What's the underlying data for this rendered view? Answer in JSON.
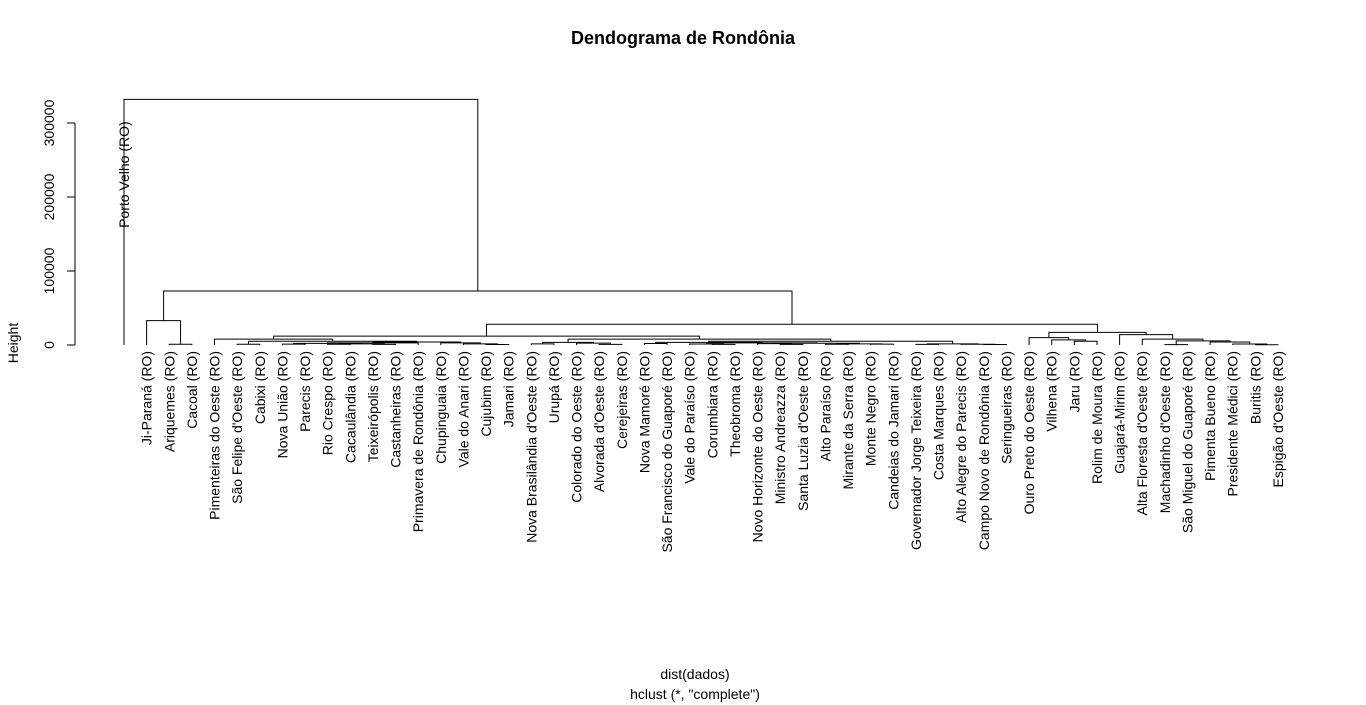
{
  "chart_data": {
    "type": "dendrogram",
    "title": "Dendograma de Rondônia",
    "xlabel": "dist(dados)",
    "subtitle": "hclust (*, \"complete\")",
    "ylabel": "Height",
    "ylim": [
      0,
      350000
    ],
    "yticks": [
      0,
      100000,
      200000,
      300000
    ],
    "linkage": "complete",
    "leaves": [
      "Porto Velho (RO)",
      "Ji-Paraná (RO)",
      "Ariquemes (RO)",
      "Cacoal (RO)",
      "Pimenteiras do Oeste (RO)",
      "São Felipe d'Oeste (RO)",
      "Cabixi (RO)",
      "Nova União (RO)",
      "Parecis (RO)",
      "Rio Crespo (RO)",
      "Cacaulândia (RO)",
      "Teixeirópolis (RO)",
      "Castanheiras (RO)",
      "Primavera de Rondônia (RO)",
      "Chupinguaia (RO)",
      "Vale do Anari (RO)",
      "Cujubim (RO)",
      "Jamari (RO)",
      "Nova Brasilândia d'Oeste (RO)",
      "Urupá (RO)",
      "Colorado do Oeste (RO)",
      "Alvorada d'Oeste (RO)",
      "Cerejeiras (RO)",
      "Nova Mamoré (RO)",
      "São Francisco do Guaporé (RO)",
      "Vale do Paraíso (RO)",
      "Corumbiara (RO)",
      "Theobroma (RO)",
      "Novo Horizonte do Oeste (RO)",
      "Ministro Andreazza (RO)",
      "Santa Luzia d'Oeste (RO)",
      "Alto Paraíso (RO)",
      "Mirante da Serra (RO)",
      "Monte Negro (RO)",
      "Candeias do Jamari (RO)",
      "Governador Jorge Teixeira (RO)",
      "Costa Marques (RO)",
      "Alto Alegre do Parecis (RO)",
      "Campo Novo de Rondônia (RO)",
      "Seringueiras (RO)",
      "Ouro Preto do Oeste (RO)",
      "Vilhena (RO)",
      "Jaru (RO)",
      "Rolim de Moura (RO)",
      "Guajará-Mirim (RO)",
      "Alta Floresta d'Oeste (RO)",
      "Machadinho d'Oeste (RO)",
      "São Miguel do Guaporé (RO)",
      "Pimenta Bueno (RO)",
      "Presidente Médici (RO)",
      "Buritis (RO)",
      "Espigão d'Oeste (RO)"
    ],
    "merges": [
      {
        "a": "L2",
        "b": "L3",
        "height": 1000
      },
      {
        "a": "L1",
        "b": "M1",
        "height": 33000
      },
      {
        "a": "L17",
        "b": "L16",
        "height": 600
      },
      {
        "a": "L15",
        "b": "M3",
        "height": 1500
      },
      {
        "a": "L14",
        "b": "M4",
        "height": 2800
      },
      {
        "a": "L12",
        "b": "L11",
        "height": 800
      },
      {
        "a": "L10",
        "b": "L9",
        "height": 1000
      },
      {
        "a": "M7",
        "b": "M6",
        "height": 1500
      },
      {
        "a": "L8",
        "b": "L7",
        "height": 1200
      },
      {
        "a": "M9",
        "b": "M8",
        "height": 2200
      },
      {
        "a": "L13",
        "b": "M10",
        "height": 2900
      },
      {
        "a": "M5",
        "b": "M11",
        "height": 4100
      },
      {
        "a": "L6",
        "b": "L5",
        "height": 1000
      },
      {
        "a": "M13",
        "b": "M12",
        "height": 5000
      },
      {
        "a": "L4",
        "b": "M14",
        "height": 8000
      },
      {
        "a": "L22",
        "b": "L21",
        "height": 800
      },
      {
        "a": "L20",
        "b": "M16",
        "height": 2500
      },
      {
        "a": "L19",
        "b": "L18",
        "height": 1600
      },
      {
        "a": "M18",
        "b": "M17",
        "height": 3600
      },
      {
        "a": "L23",
        "b": "L24",
        "height": 2000
      },
      {
        "a": "L34",
        "b": "L33",
        "height": 1200
      },
      {
        "a": "L32",
        "b": "L31",
        "height": 1000
      },
      {
        "a": "M21",
        "b": "M22",
        "height": 1500
      },
      {
        "a": "L29",
        "b": "L30",
        "height": 800
      },
      {
        "a": "L28",
        "b": "M24",
        "height": 1800
      },
      {
        "a": "M25",
        "b": "M23",
        "height": 2300
      },
      {
        "a": "L27",
        "b": "L26",
        "height": 800
      },
      {
        "a": "M27",
        "b": "L25",
        "height": 1400
      },
      {
        "a": "M28",
        "b": "M26",
        "height": 2800
      },
      {
        "a": "M20",
        "b": "M29",
        "height": 3600
      },
      {
        "a": "L36",
        "b": "L35",
        "height": 900
      },
      {
        "a": "L39",
        "b": "L38",
        "height": 600
      },
      {
        "a": "M32",
        "b": "L37",
        "height": 1000
      },
      {
        "a": "M31",
        "b": "M33",
        "height": 1600
      },
      {
        "a": "M30",
        "b": "M34",
        "height": 5000
      },
      {
        "a": "M35",
        "b": "M19",
        "height": 8000
      },
      {
        "a": "M15",
        "b": "M36",
        "height": 12000
      },
      {
        "a": "L42",
        "b": "L43",
        "height": 5000
      },
      {
        "a": "L41",
        "b": "M38",
        "height": 7000
      },
      {
        "a": "L40",
        "b": "M39",
        "height": 10000
      },
      {
        "a": "L46",
        "b": "L47",
        "height": 500
      },
      {
        "a": "L50",
        "b": "L51",
        "height": 400
      },
      {
        "a": "L49",
        "b": "M42",
        "height": 1300
      },
      {
        "a": "L48",
        "b": "M43",
        "height": 4000
      },
      {
        "a": "M41",
        "b": "M44",
        "height": 5500
      },
      {
        "a": "L45",
        "b": "M45",
        "height": 8000
      },
      {
        "a": "L44",
        "b": "M46",
        "height": 14000
      },
      {
        "a": "M40",
        "b": "M47",
        "height": 17000
      },
      {
        "a": "M37",
        "b": "M48",
        "height": 28000
      },
      {
        "a": "M2",
        "b": "M49",
        "height": 73000
      },
      {
        "a": "L0",
        "b": "M50",
        "height": 332000
      }
    ]
  }
}
